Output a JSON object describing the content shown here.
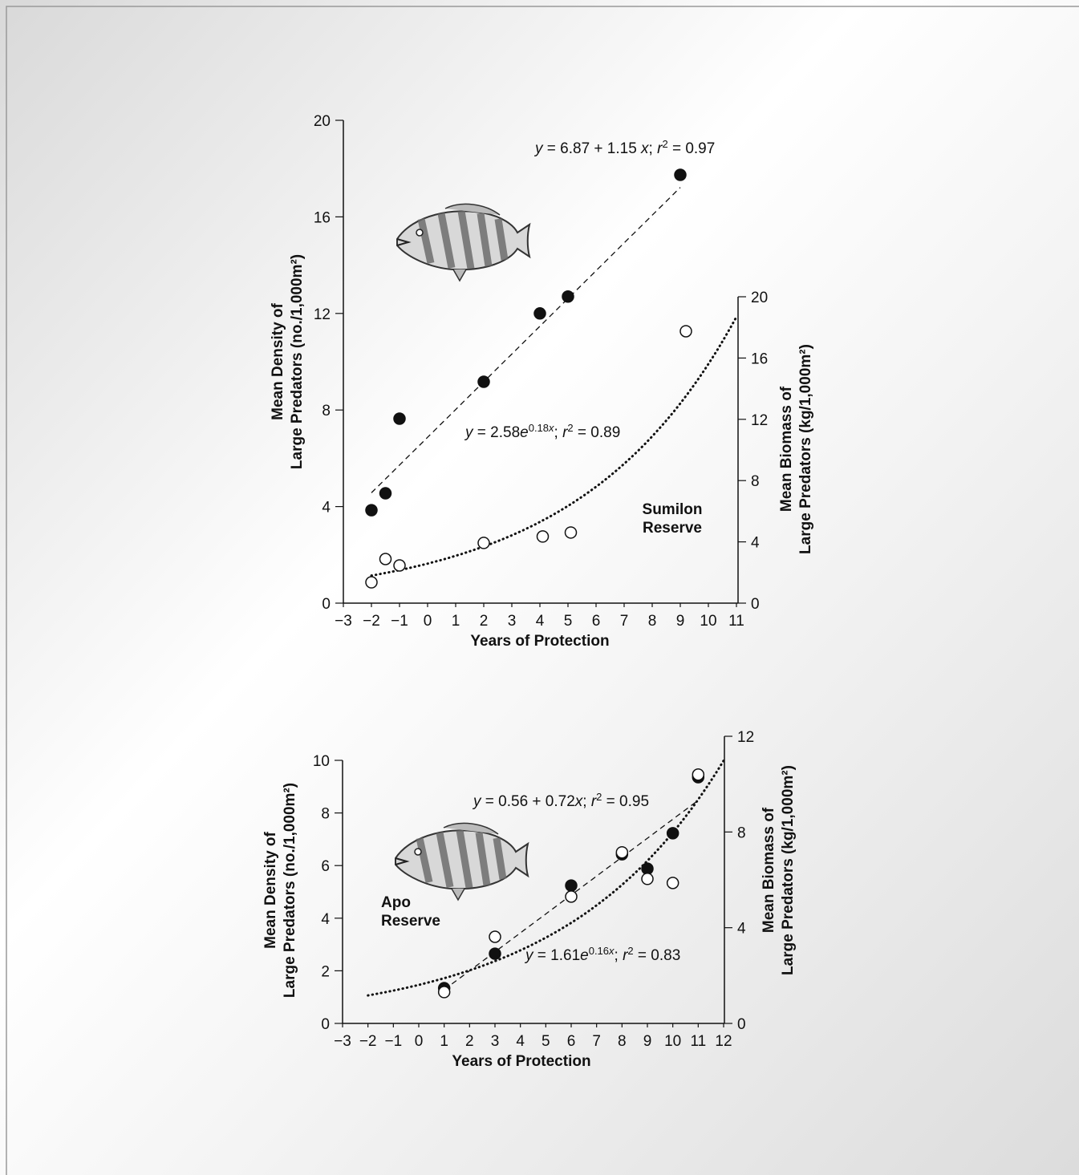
{
  "chart_data": [
    {
      "type": "scatter",
      "label": [
        "Sumilon",
        "Reserve"
      ],
      "x_label": "Years of Protection",
      "y_label": [
        "Mean Density of",
        "Large Predators (no./1,000m²)"
      ],
      "y2_label": [
        "Mean Biomass of",
        "Large Predators (kg/1,000m²)"
      ],
      "xlim": [
        -3,
        11
      ],
      "xticks": [
        {
          "value": -3,
          "label": "−3"
        },
        {
          "value": -2,
          "label": "−2"
        },
        {
          "value": -1,
          "label": "−1"
        },
        0,
        1,
        2,
        3,
        4,
        5,
        6,
        7,
        8,
        9,
        10,
        11
      ],
      "ylim": [
        0,
        20
      ],
      "yticks": [
        0,
        4,
        8,
        12,
        16,
        20
      ],
      "y2lim": [
        0,
        20
      ],
      "y2ticks": [
        0,
        4,
        8,
        12,
        16,
        20
      ],
      "series": [
        {
          "marker": "filled",
          "color": "#111111",
          "x": [
            -2,
            -1.5,
            -1,
            2,
            4,
            5,
            9
          ],
          "values": [
            3.85,
            4.55,
            7.64,
            9.17,
            12.0,
            12.7,
            17.74
          ]
        },
        {
          "marker": "open",
          "color": "#111111",
          "axis": "y2",
          "x": [
            -2,
            -1.5,
            -1,
            2,
            4.1,
            5.1,
            9.2
          ],
          "values": [
            1.36,
            2.88,
            2.46,
            3.93,
            4.35,
            4.61,
            17.75
          ]
        }
      ],
      "fits": [
        {
          "type": "linear",
          "intercept": 6.87,
          "slope": 1.15,
          "x": [
            -2,
            9
          ],
          "style": "dashed",
          "equation": [
            {
              "text": "y",
              "style": "italic"
            },
            {
              "text": " = 6.87 + 1.15 "
            },
            {
              "text": "x",
              "style": "italic"
            },
            {
              "text": "; "
            },
            {
              "text": "r",
              "style": "italic"
            },
            {
              "text": "2",
              "style": "sup"
            },
            {
              "text": " = 0.97"
            }
          ]
        },
        {
          "type": "exponential",
          "axis": "y2",
          "coef": 2.58,
          "rate": 0.18,
          "x": [
            -2,
            11
          ],
          "style": "dotted",
          "equation": [
            {
              "text": "y",
              "style": "italic"
            },
            {
              "text": " = 2.58"
            },
            {
              "text": "e",
              "style": "italic"
            },
            {
              "text": "0.18",
              "style": "sup"
            },
            {
              "text": "x",
              "style": "sup-italic"
            },
            {
              "text": "; "
            },
            {
              "text": "r",
              "style": "italic"
            },
            {
              "text": "2",
              "style": "sup"
            },
            {
              "text": " = 0.89"
            }
          ]
        }
      ]
    },
    {
      "type": "scatter",
      "label": [
        "Apo",
        "Reserve"
      ],
      "x_label": "Years of Protection",
      "y_label": [
        "Mean Density of",
        "Large Predators (no./1,000m²)"
      ],
      "y2_label": [
        "Mean Biomass of",
        "Large Predators (kg/1,000m²)"
      ],
      "xlim": [
        -3,
        12
      ],
      "xticks": [
        {
          "value": -3,
          "label": "−3"
        },
        {
          "value": -2,
          "label": "−2"
        },
        {
          "value": -1,
          "label": "−1"
        },
        0,
        1,
        2,
        3,
        4,
        5,
        6,
        7,
        8,
        9,
        10,
        11,
        12
      ],
      "ylim": [
        0,
        10
      ],
      "yticks": [
        0,
        2,
        4,
        6,
        8,
        10
      ],
      "y2lim": [
        0,
        12
      ],
      "y2ticks": [
        0,
        4,
        8,
        12
      ],
      "series": [
        {
          "marker": "filled",
          "color": "#111111",
          "x": [
            1,
            3,
            6,
            8,
            9,
            10,
            11
          ],
          "values": [
            1.34,
            2.65,
            5.24,
            6.43,
            5.88,
            7.23,
            9.36
          ]
        },
        {
          "marker": "open",
          "color": "#111111",
          "axis": "y2",
          "x": [
            1,
            3,
            6,
            8,
            9,
            10,
            11
          ],
          "values": [
            1.31,
            3.62,
            5.3,
            7.15,
            6.04,
            5.87,
            10.4
          ]
        }
      ],
      "fits": [
        {
          "type": "linear",
          "intercept": 0.56,
          "slope": 0.72,
          "x": [
            1,
            11
          ],
          "style": "dashed",
          "equation": [
            {
              "text": "y",
              "style": "italic"
            },
            {
              "text": " = 0.56 + 0.72"
            },
            {
              "text": "x",
              "style": "italic"
            },
            {
              "text": "; "
            },
            {
              "text": "r",
              "style": "italic"
            },
            {
              "text": "2",
              "style": "sup"
            },
            {
              "text": " = 0.95"
            }
          ]
        },
        {
          "type": "exponential",
          "axis": "y2",
          "coef": 1.61,
          "rate": 0.16,
          "x": [
            -2,
            12
          ],
          "style": "dotted",
          "equation": [
            {
              "text": "y",
              "style": "italic"
            },
            {
              "text": " = 1.61"
            },
            {
              "text": "e",
              "style": "italic"
            },
            {
              "text": "0.16",
              "style": "sup"
            },
            {
              "text": "x",
              "style": "sup-italic"
            },
            {
              "text": "; "
            },
            {
              "text": "r",
              "style": "italic"
            },
            {
              "text": "2",
              "style": "sup"
            },
            {
              "text": " = 0.83"
            }
          ]
        }
      ]
    }
  ]
}
